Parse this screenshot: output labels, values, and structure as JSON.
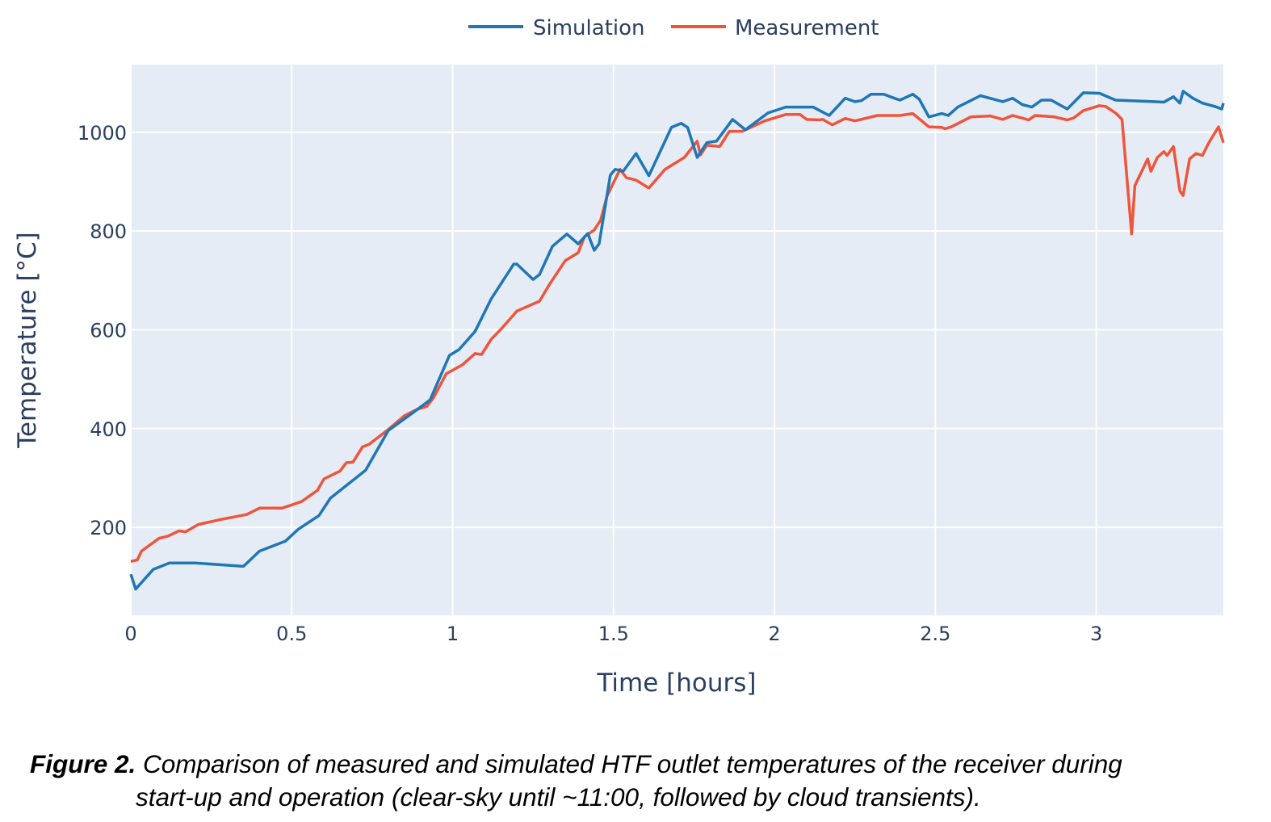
{
  "chart_data": {
    "type": "line",
    "title": "",
    "xlabel": "Time [hours]",
    "ylabel": "Temperature [°C]",
    "xlim": [
      0,
      3.395
    ],
    "ylim": [
      22,
      1137
    ],
    "xticks": [
      0,
      0.5,
      1,
      1.5,
      2,
      2.5,
      3
    ],
    "xtick_labels": [
      "0",
      "0.5",
      "1",
      "1.5",
      "2",
      "2.5",
      "3"
    ],
    "yticks": [
      200,
      400,
      600,
      800,
      1000
    ],
    "ytick_labels": [
      "200",
      "400",
      "600",
      "800",
      "1000"
    ],
    "grid": true,
    "legend_position": "top-center",
    "background": "#E5ECF6",
    "series": [
      {
        "name": "Simulation",
        "color": "#1F77B4",
        "x": [
          0,
          0.015,
          0.07,
          0.12,
          0.2,
          0.35,
          0.4,
          0.48,
          0.52,
          0.585,
          0.62,
          0.73,
          0.8,
          0.87,
          0.93,
          0.99,
          1.02,
          1.07,
          1.12,
          1.19,
          1.2,
          1.25,
          1.27,
          1.31,
          1.355,
          1.39,
          1.42,
          1.44,
          1.455,
          1.49,
          1.505,
          1.53,
          1.57,
          1.61,
          1.68,
          1.71,
          1.73,
          1.76,
          1.79,
          1.82,
          1.87,
          1.91,
          1.98,
          2.035,
          2.12,
          2.17,
          2.22,
          2.25,
          2.27,
          2.3,
          2.34,
          2.36,
          2.39,
          2.43,
          2.45,
          2.48,
          2.52,
          2.54,
          2.57,
          2.64,
          2.71,
          2.74,
          2.77,
          2.8,
          2.83,
          2.86,
          2.91,
          2.96,
          3.01,
          3.06,
          3.18,
          3.21,
          3.24,
          3.26,
          3.27,
          3.3,
          3.33,
          3.37,
          3.39,
          3.395
        ],
        "y": [
          105,
          75,
          115,
          128,
          128,
          121,
          152,
          172,
          196,
          224,
          259,
          316,
          396,
          429,
          458,
          548,
          560,
          597,
          663,
          733,
          733,
          702,
          712,
          769,
          794,
          774,
          795,
          761,
          774,
          913,
          925,
          921,
          957,
          912,
          1010,
          1018,
          1010,
          949,
          979,
          982,
          1026,
          1005,
          1039,
          1051,
          1051,
          1034,
          1069,
          1062,
          1064,
          1077,
          1077,
          1072,
          1065,
          1077,
          1067,
          1031,
          1038,
          1034,
          1051,
          1074,
          1062,
          1069,
          1056,
          1051,
          1065,
          1065,
          1047,
          1080,
          1079,
          1065,
          1062,
          1061,
          1072,
          1059,
          1083,
          1069,
          1059,
          1052,
          1047,
          1059
        ]
      },
      {
        "name": "Measurement",
        "color": "#EF553B",
        "x": [
          0,
          0.02,
          0.033,
          0.088,
          0.115,
          0.15,
          0.17,
          0.21,
          0.28,
          0.36,
          0.4,
          0.47,
          0.53,
          0.58,
          0.6,
          0.65,
          0.67,
          0.69,
          0.72,
          0.74,
          0.8,
          0.85,
          0.89,
          0.92,
          0.94,
          0.98,
          1.03,
          1.07,
          1.09,
          1.12,
          1.15,
          1.2,
          1.27,
          1.3,
          1.35,
          1.39,
          1.41,
          1.44,
          1.46,
          1.48,
          1.52,
          1.54,
          1.57,
          1.61,
          1.66,
          1.72,
          1.76,
          1.77,
          1.79,
          1.83,
          1.86,
          1.9,
          1.97,
          2.035,
          2.08,
          2.1,
          2.14,
          2.15,
          2.18,
          2.22,
          2.25,
          2.32,
          2.39,
          2.43,
          2.48,
          2.52,
          2.53,
          2.55,
          2.61,
          2.67,
          2.71,
          2.74,
          2.79,
          2.81,
          2.87,
          2.91,
          2.93,
          2.96,
          3.01,
          3.03,
          3.06,
          3.08,
          3.11,
          3.12,
          3.16,
          3.17,
          3.19,
          3.21,
          3.22,
          3.24,
          3.26,
          3.27,
          3.29,
          3.31,
          3.33,
          3.35,
          3.38,
          3.395
        ],
        "y": [
          131,
          134,
          152,
          178,
          182,
          193,
          191,
          206,
          216,
          226,
          239,
          239,
          252,
          275,
          298,
          314,
          331,
          332,
          363,
          368,
          398,
          426,
          439,
          445,
          462,
          511,
          529,
          552,
          550,
          581,
          601,
          638,
          658,
          691,
          740,
          756,
          789,
          802,
          822,
          871,
          925,
          908,
          903,
          887,
          925,
          949,
          982,
          954,
          974,
          971,
          1002,
          1002,
          1023,
          1036,
          1036,
          1026,
          1025,
          1026,
          1015,
          1028,
          1023,
          1034,
          1034,
          1038,
          1011,
          1010,
          1007,
          1011,
          1031,
          1033,
          1026,
          1034,
          1025,
          1034,
          1031,
          1025,
          1029,
          1044,
          1054,
          1052,
          1039,
          1026,
          794,
          892,
          946,
          921,
          949,
          961,
          953,
          971,
          881,
          872,
          946,
          957,
          953,
          979,
          1011,
          979
        ]
      }
    ]
  },
  "caption": {
    "label": "Figure 2.",
    "line1": " Comparison of measured and simulated HTF outlet temperatures of the receiver during",
    "line2": "start-up and operation (clear-sky until ~11:00, followed by cloud transients)."
  }
}
